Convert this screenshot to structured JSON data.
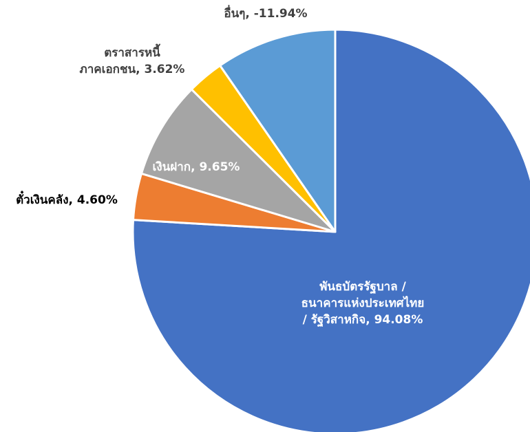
{
  "chart_data": {
    "type": "pie",
    "title": "",
    "slices": [
      {
        "label_lines": [
          "พันธบัตรรัฐบาล /",
          "ธนาคารแห่งประเทศไทย",
          "/ รัฐวิสาหกิจ, 94.08%"
        ],
        "value": 94.08,
        "color": "#4472C4",
        "label_color": "#FFFFFF"
      },
      {
        "label_lines": [
          "ตั๋วเงินคลัง, 4.60%"
        ],
        "value": 4.6,
        "color": "#ED7D31",
        "label_color": "#000000"
      },
      {
        "label_lines": [
          "เงินฝาก, 9.65%"
        ],
        "value": 9.65,
        "color": "#A5A5A5",
        "label_color": "#FFFFFF"
      },
      {
        "label_lines": [
          "ตราสารหนี้",
          "ภาคเอกชน, 3.62%"
        ],
        "value": 3.62,
        "color": "#FFC000",
        "label_color": "#404040"
      },
      {
        "label_lines": [
          "อื่นๆ, -11.94%"
        ],
        "value": -11.94,
        "color": "#5B9BD5",
        "label_color": "#404040"
      }
    ]
  }
}
